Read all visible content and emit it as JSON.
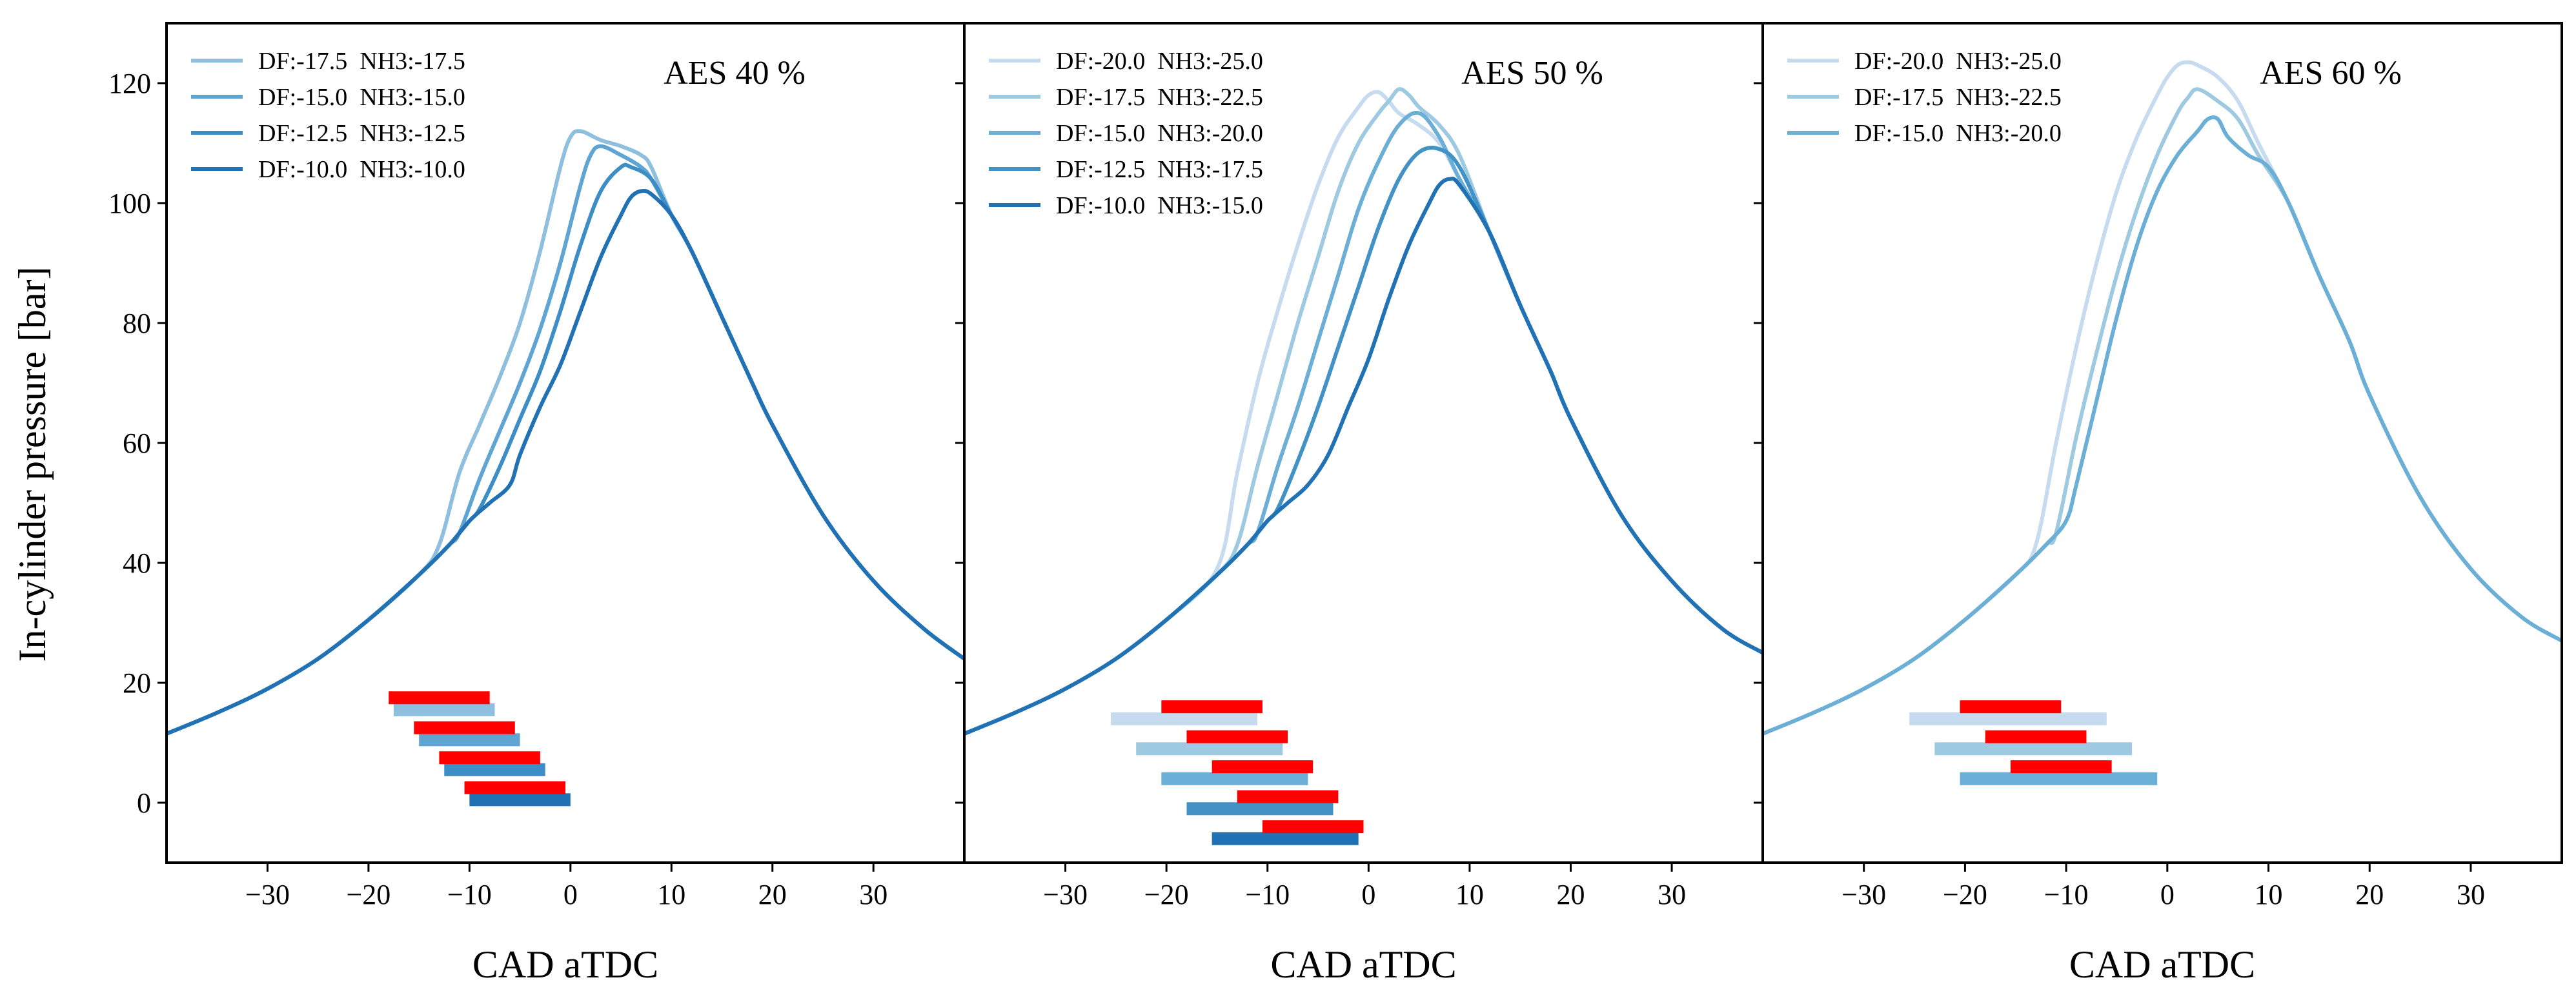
{
  "figure": {
    "ylabel": "In-cylinder pressure [bar]",
    "xlabel": "CAD aTDC",
    "xlim": [
      -40,
      39
    ],
    "ylim": [
      -10,
      130
    ],
    "x_ticks": [
      -30,
      -20,
      -10,
      0,
      10,
      20,
      30
    ],
    "y_ticks": [
      0,
      20,
      40,
      60,
      80,
      100,
      120
    ]
  },
  "chart_data": [
    {
      "type": "line",
      "title": "AES 40 %",
      "xlabel": "CAD aTDC",
      "ylabel": "In-cylinder pressure [bar]",
      "xlim": [
        -40,
        39
      ],
      "ylim": [
        -10,
        130
      ],
      "base_curve": {
        "x": [
          -40,
          -35,
          -30,
          -25,
          -20,
          -15,
          -12,
          -10,
          -8,
          -6,
          -4
        ],
        "y": [
          11.5,
          15,
          19,
          24,
          30.5,
          38,
          43,
          47,
          50,
          53,
          55.5
        ]
      },
      "tail_curve": {
        "x": [
          10,
          12,
          15,
          18,
          20,
          25,
          30,
          35,
          39
        ],
        "y": [
          98,
          92,
          81,
          70,
          63,
          48,
          37,
          29,
          24
        ]
      },
      "series": [
        {
          "name": "DF:-17.5  NH3:-17.5",
          "color": "#8ebfde",
          "x": [
            -13,
            -11,
            -9,
            -7,
            -5,
            -3,
            -1,
            0,
            1,
            3,
            5,
            7,
            8,
            10
          ],
          "y": [
            43,
            55,
            63,
            71,
            80,
            92,
            106,
            111,
            112,
            110.5,
            109.5,
            108,
            106,
            98
          ]
        },
        {
          "name": "DF:-15.0  NH3:-15.0",
          "color": "#5fa4d3",
          "x": [
            -11,
            -9,
            -7,
            -5,
            -3,
            -1,
            1,
            2,
            3,
            5,
            7,
            8,
            10
          ],
          "y": [
            45,
            54,
            62,
            70,
            79,
            90,
            103,
            108,
            109.5,
            108,
            106,
            104,
            98
          ]
        },
        {
          "name": "DF:-12.5  NH3:-12.5",
          "color": "#3d8dc6",
          "x": [
            -9,
            -7,
            -5,
            -3,
            -1,
            1,
            3,
            5,
            6,
            8,
            10
          ],
          "y": [
            49,
            56,
            64,
            72,
            82,
            93,
            102,
            106,
            106,
            104,
            98
          ]
        },
        {
          "name": "DF:-10.0  NH3:-10.0",
          "color": "#2171b5",
          "x": [
            -6,
            -5,
            -3,
            -1,
            1,
            3,
            5,
            6,
            7,
            8,
            10
          ],
          "y": [
            53,
            58,
            66,
            73,
            82,
            91,
            98,
            101,
            102,
            101.5,
            98
          ]
        }
      ],
      "bars": [
        {
          "name": "DF:-17.5  NH3:-17.5",
          "color": "#8ebfde",
          "red": [
            -18,
            -8
          ],
          "blue": [
            -17.5,
            -7.5
          ],
          "y_red": 17.5,
          "y_blue": 15.5
        },
        {
          "name": "DF:-15.0  NH3:-15.0",
          "color": "#5fa4d3",
          "red": [
            -15.5,
            -5.5
          ],
          "blue": [
            -15,
            -5
          ],
          "y_red": 12.5,
          "y_blue": 10.5
        },
        {
          "name": "DF:-12.5  NH3:-12.5",
          "color": "#3d8dc6",
          "red": [
            -13,
            -3
          ],
          "blue": [
            -12.5,
            -2.5
          ],
          "y_red": 7.5,
          "y_blue": 5.5
        },
        {
          "name": "DF:-10.0  NH3:-10.0",
          "color": "#2171b5",
          "red": [
            -10.5,
            -0.5
          ],
          "blue": [
            -10,
            0
          ],
          "y_red": 2.5,
          "y_blue": 0.5
        }
      ]
    },
    {
      "type": "line",
      "title": "AES 50 %",
      "xlabel": "CAD aTDC",
      "ylabel": "In-cylinder pressure [bar]",
      "xlim": [
        -40,
        39
      ],
      "ylim": [
        -10,
        130
      ],
      "base_curve": {
        "x": [
          -40,
          -35,
          -30,
          -25,
          -20,
          -15,
          -12,
          -10,
          -8,
          -6,
          -4
        ],
        "y": [
          11.5,
          15,
          19,
          24,
          30.5,
          38,
          43,
          47,
          50,
          53,
          55.5
        ]
      },
      "tail_curve": {
        "x": [
          12,
          15,
          18,
          20,
          25,
          30,
          35,
          39
        ],
        "y": [
          95,
          83,
          72,
          64,
          48,
          37,
          29,
          25
        ]
      },
      "series": [
        {
          "name": "DF:-20.0  NH3:-25.0",
          "color": "#c6dbef",
          "x": [
            -15,
            -13,
            -11,
            -9,
            -7,
            -5,
            -3,
            -1,
            0,
            1,
            2,
            3,
            5,
            7,
            9,
            12
          ],
          "y": [
            39,
            55,
            70,
            82,
            93,
            103,
            111,
            116,
            118,
            118.5,
            117,
            115,
            113,
            110,
            104,
            95
          ]
        },
        {
          "name": "DF:-17.5  NH3:-22.5",
          "color": "#9ecae1",
          "x": [
            -13,
            -11,
            -9,
            -7,
            -5,
            -3,
            -1,
            1,
            2,
            3,
            4,
            5,
            7,
            9,
            12
          ],
          "y": [
            43,
            56,
            68,
            80,
            91,
            102,
            110,
            115,
            117,
            119,
            118,
            116,
            113,
            108,
            95
          ]
        },
        {
          "name": "DF:-15.0  NH3:-20.0",
          "color": "#6baed6",
          "x": [
            -11,
            -9,
            -7,
            -5,
            -3,
            -1,
            1,
            3,
            5,
            7,
            9,
            12
          ],
          "y": [
            45,
            56,
            66,
            77,
            88,
            99,
            107,
            113,
            115,
            111,
            104,
            95
          ]
        },
        {
          "name": "DF:-12.5  NH3:-17.5",
          "color": "#4292c6",
          "x": [
            -9,
            -7,
            -5,
            -3,
            -1,
            1,
            3,
            5,
            7,
            9,
            12
          ],
          "y": [
            49,
            57,
            66,
            76,
            86,
            96,
            104,
            108.5,
            109,
            106,
            95
          ]
        },
        {
          "name": "DF:-10.0  NH3:-15.0",
          "color": "#2171b5",
          "x": [
            -6,
            -4,
            -2,
            0,
            2,
            4,
            6,
            7,
            8,
            9,
            12
          ],
          "y": [
            53,
            58,
            66,
            74,
            84,
            93,
            100,
            103,
            104,
            103,
            95
          ]
        }
      ],
      "bars": [
        {
          "name": "DF:-20.0  NH3:-25.0",
          "color": "#c6dbef",
          "red": [
            -20.5,
            -10.5
          ],
          "blue": [
            -25.5,
            -11
          ],
          "y_red": 16,
          "y_blue": 14
        },
        {
          "name": "DF:-17.5  NH3:-22.5",
          "color": "#9ecae1",
          "red": [
            -18,
            -8
          ],
          "blue": [
            -23,
            -8.5
          ],
          "y_red": 11,
          "y_blue": 9
        },
        {
          "name": "DF:-15.0  NH3:-20.0",
          "color": "#6baed6",
          "red": [
            -15.5,
            -5.5
          ],
          "blue": [
            -20.5,
            -6
          ],
          "y_red": 6,
          "y_blue": 4
        },
        {
          "name": "DF:-12.5  NH3:-17.5",
          "color": "#4292c6",
          "red": [
            -13,
            -3
          ],
          "blue": [
            -18,
            -3.5
          ],
          "y_red": 1,
          "y_blue": -1
        },
        {
          "name": "DF:-10.0  NH3:-15.0",
          "color": "#2171b5",
          "red": [
            -10.5,
            -0.5
          ],
          "blue": [
            -15.5,
            -1
          ],
          "y_red": -4,
          "y_blue": -6
        }
      ]
    },
    {
      "type": "line",
      "title": "AES 60 %",
      "xlabel": "CAD aTDC",
      "ylabel": "In-cylinder pressure [bar]",
      "xlim": [
        -40,
        39
      ],
      "ylim": [
        -10,
        130
      ],
      "base_curve": {
        "x": [
          -40,
          -35,
          -30,
          -25,
          -20,
          -15,
          -12,
          -10,
          -8
        ],
        "y": [
          11.5,
          15,
          19,
          24,
          30.5,
          38,
          43,
          47,
          50
        ]
      },
      "tail_curve": {
        "x": [
          12,
          15,
          18,
          20,
          25,
          30,
          35,
          39
        ],
        "y": [
          100,
          88,
          77,
          68,
          51,
          39,
          31,
          27
        ]
      },
      "series": [
        {
          "name": "DF:-20.0  NH3:-25.0",
          "color": "#c6dbef",
          "x": [
            -13,
            -11,
            -9,
            -7,
            -5,
            -3,
            -1,
            0,
            1,
            2,
            3,
            5,
            7,
            9,
            12
          ],
          "y": [
            43,
            60,
            76,
            90,
            102,
            111,
            118,
            121,
            123,
            123.5,
            123,
            121,
            117,
            110,
            100
          ]
        },
        {
          "name": "DF:-17.5  NH3:-22.5",
          "color": "#9ecae1",
          "x": [
            -11,
            -9,
            -7,
            -5,
            -3,
            -1,
            1,
            2,
            3,
            5,
            7,
            9,
            12
          ],
          "y": [
            45,
            61,
            75,
            88,
            99,
            108,
            115,
            117.5,
            119,
            117,
            114,
            108,
            100
          ]
        },
        {
          "name": "DF:-15.0  NH3:-20.0",
          "color": "#6baed6",
          "x": [
            -10,
            -9,
            -7,
            -5,
            -3,
            -1,
            1,
            3,
            4,
            5,
            6,
            8,
            10,
            12
          ],
          "y": [
            47,
            53,
            67,
            81,
            93,
            102,
            108,
            112,
            114,
            114,
            111,
            108,
            106,
            100
          ]
        }
      ],
      "bars": [
        {
          "name": "DF:-20.0  NH3:-25.0",
          "color": "#c6dbef",
          "red": [
            -20.5,
            -10.5
          ],
          "blue": [
            -25.5,
            -6
          ],
          "y_red": 16,
          "y_blue": 14
        },
        {
          "name": "DF:-17.5  NH3:-22.5",
          "color": "#9ecae1",
          "red": [
            -18,
            -8
          ],
          "blue": [
            -23,
            -3.5
          ],
          "y_red": 11,
          "y_blue": 9
        },
        {
          "name": "DF:-15.0  NH3:-20.0",
          "color": "#6baed6",
          "red": [
            -15.5,
            -5.5
          ],
          "blue": [
            -20.5,
            -1
          ],
          "y_red": 6,
          "y_blue": 4
        }
      ]
    }
  ],
  "colors": {
    "red_bar": "#ff0000",
    "axis": "#000000"
  }
}
